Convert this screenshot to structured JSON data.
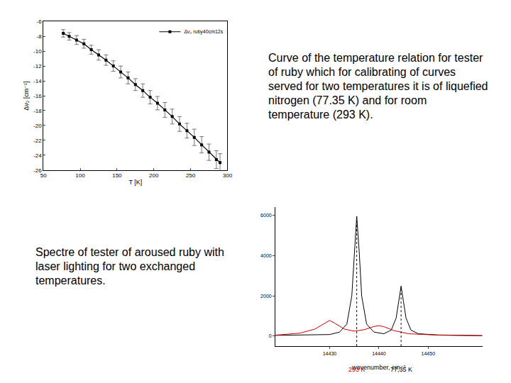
{
  "chart_data": [
    {
      "type": "line",
      "x_label": "T [K]",
      "y_label": "Δν₂ [cm⁻¹]",
      "legend": "top right",
      "grid": false,
      "marker": "square",
      "xlim": [
        50,
        300
      ],
      "xticks": [
        50,
        100,
        150,
        200,
        250,
        300
      ],
      "ylim": [
        -26,
        -6
      ],
      "yticks": [
        -26,
        -24,
        -22,
        -20,
        -18,
        -16,
        -14,
        -12,
        -10,
        -8,
        -6
      ],
      "x": [
        77,
        85,
        95,
        105,
        115,
        125,
        135,
        145,
        155,
        165,
        175,
        185,
        195,
        205,
        215,
        225,
        235,
        245,
        255,
        265,
        275,
        285,
        290
      ],
      "series": [
        {
          "name": "Δν₂ ruby40cm12s",
          "color": "#000000",
          "values": [
            -7.6,
            -8.0,
            -8.5,
            -9.0,
            -9.8,
            -10.5,
            -11.2,
            -12.0,
            -12.8,
            -13.6,
            -14.5,
            -15.3,
            -16.2,
            -17.0,
            -17.9,
            -18.8,
            -19.8,
            -20.7,
            -21.6,
            -22.6,
            -23.6,
            -24.6,
            -25.0
          ],
          "error": [
            0.5,
            0.5,
            0.6,
            0.6,
            0.6,
            0.7,
            0.7,
            0.7,
            0.8,
            0.8,
            0.8,
            0.9,
            0.9,
            0.9,
            1.0,
            1.0,
            1.0,
            1.0,
            1.1,
            1.1,
            1.1,
            1.2,
            1.2
          ]
        }
      ]
    },
    {
      "type": "line",
      "x_label": "wavenumber, cm⁻¹",
      "grid": false,
      "xlim": [
        14419,
        14461
      ],
      "xticks": [
        14430,
        14440,
        14450
      ],
      "ylim": [
        -500,
        6400
      ],
      "yticks": [
        0,
        2000,
        4000,
        6000
      ],
      "series": [
        {
          "color": "#000000",
          "line_style": "solid",
          "x": [
            14419,
            14425,
            14430,
            14432,
            14433.5,
            14434.5,
            14435,
            14435.5,
            14436,
            14436.5,
            14437.5,
            14439,
            14441,
            14442.5,
            14443.5,
            14444,
            14444.5,
            14445,
            14445.5,
            14446.5,
            14448,
            14452,
            14461
          ],
          "values": [
            40,
            50,
            80,
            200,
            600,
            2000,
            4200,
            5950,
            4200,
            2000,
            600,
            200,
            120,
            300,
            900,
            1700,
            2480,
            1700,
            900,
            300,
            120,
            60,
            30
          ]
        },
        {
          "color": "#cc0000",
          "line_style": "solid",
          "x": [
            14419,
            14424,
            14427,
            14429,
            14430,
            14431,
            14433,
            14435,
            14437,
            14439,
            14440,
            14441,
            14443,
            14446,
            14452,
            14461
          ],
          "values": [
            50,
            150,
            350,
            650,
            780,
            650,
            350,
            250,
            320,
            480,
            520,
            470,
            280,
            120,
            50,
            20
          ]
        }
      ],
      "annotations": [
        {
          "text": "293 K",
          "x": 14435.5,
          "y": 5950,
          "color": "#cc0000"
        },
        {
          "text": "77,35 K",
          "x": 14444.5,
          "y": 2480,
          "color": "#000000"
        }
      ]
    }
  ],
  "captions": [
    "Curve of the temperature relation for tester of ruby which for calibrating of curves served for two temperatures it is of liquefied nitrogen (77.35 K) and for room temperature (293 K).",
    "Spectre of tester of aroused ruby with laser lighting for two exchanged temperatures."
  ]
}
